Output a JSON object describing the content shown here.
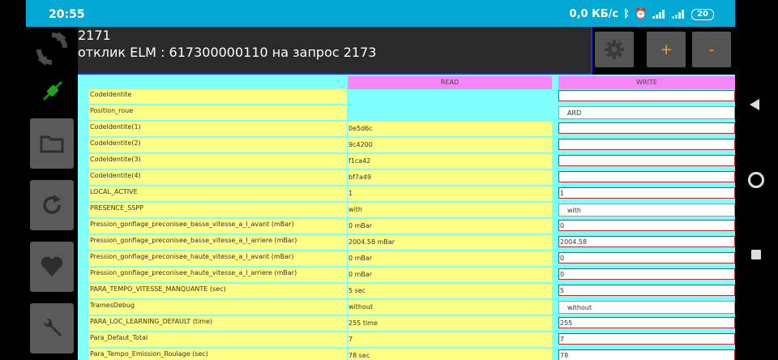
{
  "status": {
    "time": "20:55",
    "speed": "0,0 КБ/с",
    "battery": "20"
  },
  "log": {
    "line1": "2171",
    "line2": "отклик ELM : 617300000110 на запрос 2173"
  },
  "toolbar": {
    "plus_label": "+",
    "minus_label": "-"
  },
  "table": {
    "read_header": "READ",
    "write_header": "WRITE",
    "rows": [
      {
        "name": "CodeIdentite",
        "read": "",
        "write": "",
        "type": "input"
      },
      {
        "name": "Position_roue",
        "read": "",
        "write": "ARD",
        "type": "select"
      },
      {
        "name": "CodeIdentite(1)",
        "read": "0e5d6c",
        "write": "",
        "type": "input"
      },
      {
        "name": "CodeIdentite(2)",
        "read": "9c4200",
        "write": "",
        "type": "input"
      },
      {
        "name": "CodeIdentite(3)",
        "read": "f1ca42",
        "write": "",
        "type": "input"
      },
      {
        "name": "CodeIdentite(4)",
        "read": "bf7a49",
        "write": "",
        "type": "input"
      },
      {
        "name": "LOCAL_ACTIVE",
        "read": "1",
        "write": "1",
        "type": "input"
      },
      {
        "name": "PRESENCE_SSPP",
        "read": "with",
        "write": "with",
        "type": "select"
      },
      {
        "name": "Pression_gonflage_preconisee_basse_vitesse_a_l_avant (mBar)",
        "read": "0 mBar",
        "write": "0",
        "type": "input"
      },
      {
        "name": "Pression_gonflage_preconisee_basse_vitesse_a_l_arriere (mBar)",
        "read": "2004.58 mBar",
        "write": "2004.58",
        "type": "input"
      },
      {
        "name": "Pression_gonflage_preconisee_haute_vitesse_a_l_avant (mBar)",
        "read": "0 mBar",
        "write": "0",
        "type": "input"
      },
      {
        "name": "Pression_gonflage_preconisee_haute_vitesse_a_l_arriere (mBar)",
        "read": "0 mBar",
        "write": "0",
        "type": "input"
      },
      {
        "name": "PARA_TEMPO_VITESSE_MANQUANTE (sec)",
        "read": "5 sec",
        "write": "5",
        "type": "input"
      },
      {
        "name": "TramesDebug",
        "read": "without",
        "write": "without",
        "type": "select"
      },
      {
        "name": "PARA_LOC_LEARNING_DEFAULT (time)",
        "read": "255 time",
        "write": "255",
        "type": "input"
      },
      {
        "name": "Para_Defaut_Total",
        "read": "7",
        "write": "7",
        "type": "input"
      },
      {
        "name": "Para_Tempo_Emission_Roulage (sec)",
        "read": "78 sec",
        "write": "78",
        "type": "input"
      }
    ]
  }
}
